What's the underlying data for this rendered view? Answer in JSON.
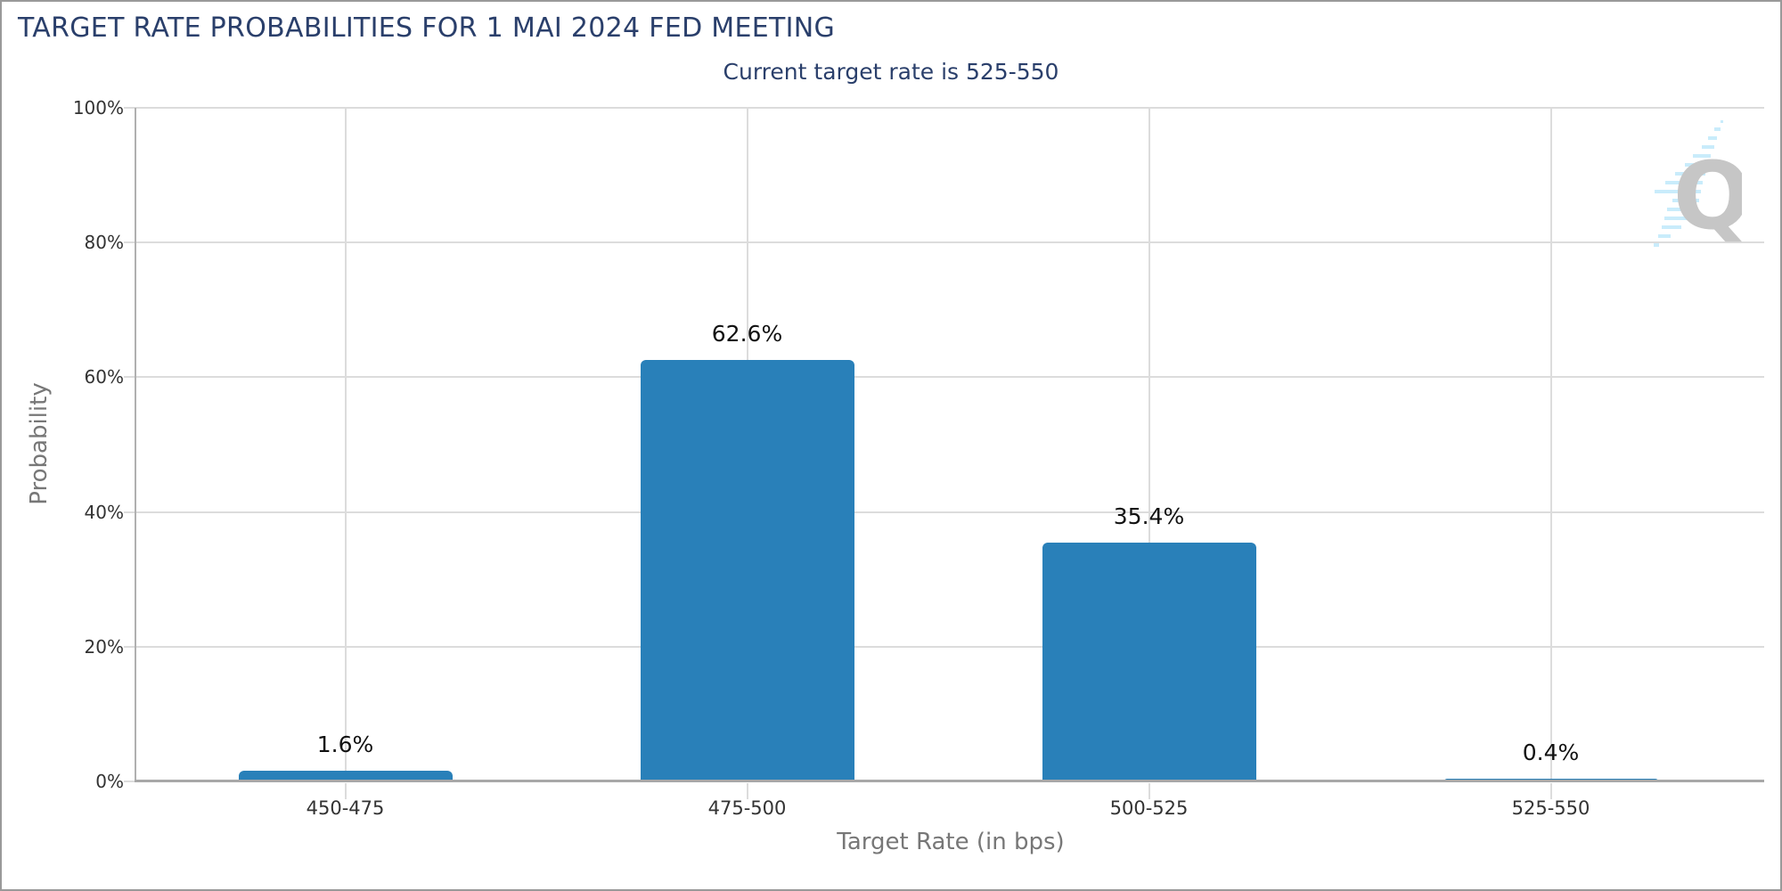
{
  "header": {
    "title": "TARGET RATE PROBABILITIES FOR 1 MAI 2024 FED MEETING",
    "subtitle": "Current target rate is 525-550"
  },
  "axes": {
    "y_label": "Probability",
    "x_label": "Target Rate (in bps)",
    "y_ticks": [
      "0%",
      "20%",
      "40%",
      "60%",
      "80%",
      "100%"
    ]
  },
  "bars": [
    {
      "category": "450-475",
      "value": 1.6,
      "label": "1.6%"
    },
    {
      "category": "475-500",
      "value": 62.6,
      "label": "62.6%"
    },
    {
      "category": "500-525",
      "value": 35.4,
      "label": "35.4%"
    },
    {
      "category": "525-550",
      "value": 0.4,
      "label": "0.4%"
    }
  ],
  "colors": {
    "bar": "#2980b9",
    "title": "#2a3f6b",
    "grid": "#dcdcdc"
  },
  "logo": {
    "glyph": "Q"
  },
  "chart_data": {
    "type": "bar",
    "title": "TARGET RATE PROBABILITIES FOR 1 MAI 2024 FED MEETING",
    "subtitle": "Current target rate is 525-550",
    "categories": [
      "450-475",
      "475-500",
      "500-525",
      "525-550"
    ],
    "values": [
      1.6,
      62.6,
      35.4,
      0.4
    ],
    "xlabel": "Target Rate (in bps)",
    "ylabel": "Probability",
    "ylim": [
      0,
      100
    ],
    "y_unit": "%",
    "y_ticks": [
      0,
      20,
      40,
      60,
      80,
      100
    ],
    "grid": true,
    "legend": null,
    "data_labels": true
  }
}
